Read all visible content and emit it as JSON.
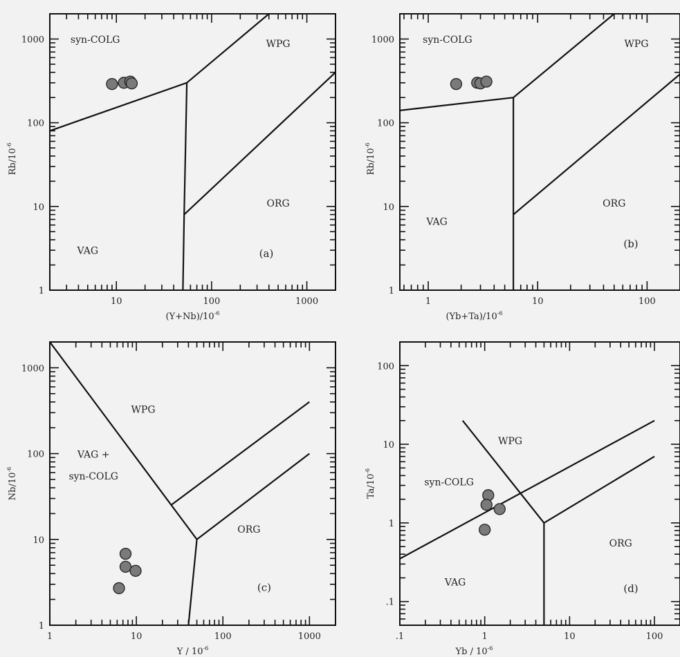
{
  "chart_data": [
    {
      "type": "scatter",
      "panel_label": "(a)",
      "xlabel": "(Y+Nb)/10",
      "xlabel_exp": "-6",
      "ylabel": "Rb/10",
      "ylabel_exp": "-6",
      "xscale": "log",
      "yscale": "log",
      "xlim": [
        2,
        2000
      ],
      "ylim": [
        1,
        2000
      ],
      "xticks": [
        {
          "v": 10,
          "label": "10"
        },
        {
          "v": 100,
          "label": "100"
        },
        {
          "v": 1000,
          "label": "1000"
        }
      ],
      "yticks": [
        {
          "v": 1,
          "label": "1"
        },
        {
          "v": 10,
          "label": "10"
        },
        {
          "v": 100,
          "label": "100"
        },
        {
          "v": 1000,
          "label": "1000"
        }
      ],
      "fields": [
        {
          "label": "syn-COLG",
          "x": 6,
          "y": 900
        },
        {
          "label": "WPG",
          "x": 500,
          "y": 800
        },
        {
          "label": "ORG",
          "x": 500,
          "y": 10
        },
        {
          "label": "VAG",
          "x": 5,
          "y": 2.7
        }
      ],
      "boundaries": [
        [
          [
            2,
            80
          ],
          [
            55,
            300
          ],
          [
            400,
            2000
          ]
        ],
        [
          [
            55,
            300
          ],
          [
            51.5,
            8
          ],
          [
            50,
            1
          ]
        ],
        [
          [
            51.5,
            8
          ],
          [
            2000,
            400
          ]
        ]
      ],
      "points": [
        {
          "x": 9,
          "y": 290
        },
        {
          "x": 12,
          "y": 300
        },
        {
          "x": 14,
          "y": 310
        },
        {
          "x": 14.5,
          "y": 295
        }
      ]
    },
    {
      "type": "scatter",
      "panel_label": "(b)",
      "xlabel": "(Yb+Ta)/10",
      "xlabel_exp": "-6",
      "ylabel": "Rb/10",
      "ylabel_exp": "-6",
      "xscale": "log",
      "yscale": "log",
      "xlim": [
        0.55,
        200
      ],
      "ylim": [
        1,
        2000
      ],
      "xticks": [
        {
          "v": 1,
          "label": "1"
        },
        {
          "v": 10,
          "label": "10"
        },
        {
          "v": 100,
          "label": "100"
        }
      ],
      "yticks": [
        {
          "v": 1,
          "label": "1"
        },
        {
          "v": 10,
          "label": "10"
        },
        {
          "v": 100,
          "label": "100"
        },
        {
          "v": 1000,
          "label": "1000"
        }
      ],
      "fields": [
        {
          "label": "syn-COLG",
          "x": 1.5,
          "y": 900
        },
        {
          "label": "WPG",
          "x": 80,
          "y": 800
        },
        {
          "label": "ORG",
          "x": 50,
          "y": 10
        },
        {
          "label": "VAG",
          "x": 1.2,
          "y": 6
        }
      ],
      "boundaries": [
        [
          [
            0.55,
            140
          ],
          [
            6,
            200
          ],
          [
            50,
            2000
          ]
        ],
        [
          [
            6,
            200
          ],
          [
            6,
            1
          ]
        ],
        [
          [
            6,
            8
          ],
          [
            200,
            380
          ]
        ]
      ],
      "points": [
        {
          "x": 1.8,
          "y": 290
        },
        {
          "x": 2.8,
          "y": 300
        },
        {
          "x": 3.0,
          "y": 295
        },
        {
          "x": 3.4,
          "y": 310
        }
      ]
    },
    {
      "type": "scatter",
      "panel_label": "(c)",
      "xlabel": "Y / 10",
      "xlabel_exp": "-6",
      "ylabel": "Nb/10",
      "ylabel_exp": "-6",
      "xscale": "log",
      "yscale": "log",
      "xlim": [
        1,
        2000
      ],
      "ylim": [
        1,
        2000
      ],
      "xticks": [
        {
          "v": 1,
          "label": "1"
        },
        {
          "v": 10,
          "label": "10"
        },
        {
          "v": 100,
          "label": "100"
        },
        {
          "v": 1000,
          "label": "1000"
        }
      ],
      "yticks": [
        {
          "v": 1,
          "label": "1"
        },
        {
          "v": 10,
          "label": "10"
        },
        {
          "v": 100,
          "label": "100"
        },
        {
          "v": 1000,
          "label": "1000"
        }
      ],
      "fields": [
        {
          "label": "WPG",
          "x": 12,
          "y": 300
        },
        {
          "label": "VAG +",
          "x": 3.2,
          "y": 90
        },
        {
          "label": "syn-COLG",
          "x": 3.2,
          "y": 50
        },
        {
          "label": "ORG",
          "x": 200,
          "y": 12
        },
        {
          "label": "(c)",
          "x": 300,
          "y": 2.5
        }
      ],
      "boundaries": [
        [
          [
            1,
            2000
          ],
          [
            50,
            10
          ]
        ],
        [
          [
            50,
            10
          ],
          [
            40,
            1
          ]
        ],
        [
          [
            25,
            25
          ],
          [
            1000,
            400
          ]
        ],
        [
          [
            50,
            10
          ],
          [
            1000,
            100
          ]
        ]
      ],
      "points": [
        {
          "x": 7.5,
          "y": 6.8
        },
        {
          "x": 7.5,
          "y": 4.8
        },
        {
          "x": 9.8,
          "y": 4.3
        },
        {
          "x": 6.3,
          "y": 2.7
        }
      ]
    },
    {
      "type": "scatter",
      "panel_label": "(d)",
      "xlabel": "Yb / 10",
      "xlabel_exp": "-6",
      "ylabel": "Ta/10",
      "ylabel_exp": "-6",
      "xscale": "log",
      "yscale": "log",
      "xlim": [
        0.1,
        200
      ],
      "ylim": [
        0.05,
        200
      ],
      "xticks": [
        {
          "v": 0.1,
          "label": ".1"
        },
        {
          "v": 1,
          "label": "1"
        },
        {
          "v": 10,
          "label": "10"
        },
        {
          "v": 100,
          "label": "100"
        }
      ],
      "yticks": [
        {
          "v": 0.1,
          "label": ".1"
        },
        {
          "v": 1,
          "label": "1"
        },
        {
          "v": 10,
          "label": "10"
        },
        {
          "v": 100,
          "label": "100"
        }
      ],
      "fields": [
        {
          "label": "WPG",
          "x": 2,
          "y": 10
        },
        {
          "label": "syn-COLG",
          "x": 0.38,
          "y": 3
        },
        {
          "label": "ORG",
          "x": 40,
          "y": 0.5
        },
        {
          "label": "VAG",
          "x": 0.45,
          "y": 0.16
        }
      ],
      "boundaries": [
        [
          [
            0.1,
            0.35
          ],
          [
            100,
            20
          ]
        ],
        [
          [
            0.55,
            20
          ],
          [
            5,
            1
          ]
        ],
        [
          [
            5,
            1
          ],
          [
            100,
            7
          ]
        ],
        [
          [
            5,
            1
          ],
          [
            5,
            0.05
          ]
        ]
      ],
      "points": [
        {
          "x": 1.1,
          "y": 2.25
        },
        {
          "x": 1.05,
          "y": 1.7
        },
        {
          "x": 1.5,
          "y": 1.5
        },
        {
          "x": 1.0,
          "y": 0.82
        }
      ]
    }
  ]
}
